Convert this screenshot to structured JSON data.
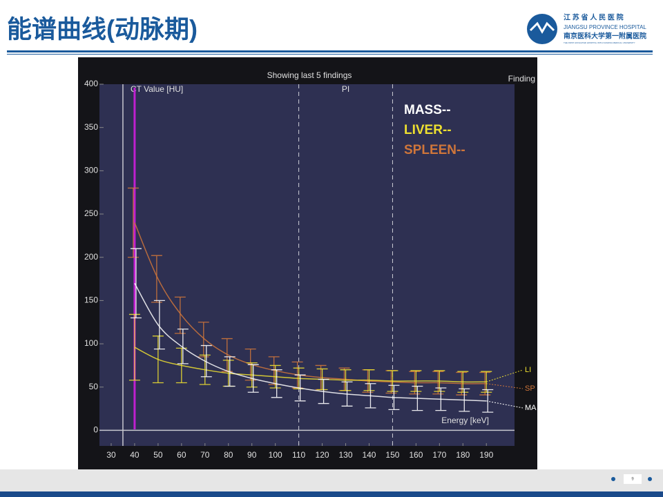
{
  "slide": {
    "title": "能谱曲线(动脉期)",
    "logo_name_cn": "江 苏 省 人 民 医 院",
    "logo_name_en": "JIANGSU PROVINCE HOSPITAL",
    "logo_university": "南京医科大学第一附属医院",
    "logo_small": "THE FIRST AFFILIATED HOSPITAL WITH NANJING MEDICAL UNIVERSITY",
    "page_number": "9"
  },
  "chart_data": {
    "type": "line",
    "title": "Showing last 5 findings",
    "corner_label": "Finding",
    "y_label": "CT Value [HU]",
    "x_label": "Energy [keV]",
    "region_label": "PI",
    "x": [
      40,
      50,
      60,
      70,
      80,
      90,
      100,
      110,
      120,
      130,
      140,
      150,
      160,
      170,
      180,
      190
    ],
    "xlim": [
      25,
      202
    ],
    "xticks": [
      30,
      40,
      50,
      60,
      70,
      80,
      90,
      100,
      110,
      120,
      130,
      140,
      150,
      160,
      170,
      180,
      190
    ],
    "ylim": [
      -18,
      400
    ],
    "yticks": [
      0,
      50,
      100,
      150,
      200,
      250,
      300,
      350,
      400
    ],
    "axis_x": 35,
    "cursor_x": 40,
    "dashed_x": [
      110,
      150
    ],
    "series": [
      {
        "name": "SPLEEN--",
        "end_label": "SP",
        "color": "#d0763a",
        "values": [
          240,
          175,
          133,
          105,
          87,
          76,
          69,
          64,
          61,
          59,
          57,
          56,
          55,
          55,
          54,
          54
        ],
        "errors": [
          40,
          27,
          21,
          20,
          19,
          18,
          16,
          15,
          14,
          13,
          13,
          13,
          13,
          13,
          13,
          13
        ]
      },
      {
        "name": "LIVER--",
        "end_label": "LI",
        "color": "#eee030",
        "values": [
          96,
          82,
          75,
          70,
          66,
          64,
          62,
          60,
          59,
          58,
          58,
          57,
          57,
          57,
          56,
          56
        ],
        "errors": [
          38,
          27,
          20,
          17,
          15,
          14,
          13,
          12,
          12,
          12,
          12,
          12,
          12,
          12,
          12,
          12
        ]
      },
      {
        "name": "MASS--",
        "end_label": "MA",
        "color": "#ffffff",
        "values": [
          170,
          122,
          97,
          80,
          68,
          60,
          54,
          49,
          45,
          42,
          40,
          38,
          37,
          36,
          35,
          34
        ],
        "errors": [
          40,
          28,
          20,
          18,
          17,
          16,
          16,
          15,
          14,
          14,
          14,
          14,
          14,
          13,
          13,
          13
        ]
      }
    ]
  }
}
